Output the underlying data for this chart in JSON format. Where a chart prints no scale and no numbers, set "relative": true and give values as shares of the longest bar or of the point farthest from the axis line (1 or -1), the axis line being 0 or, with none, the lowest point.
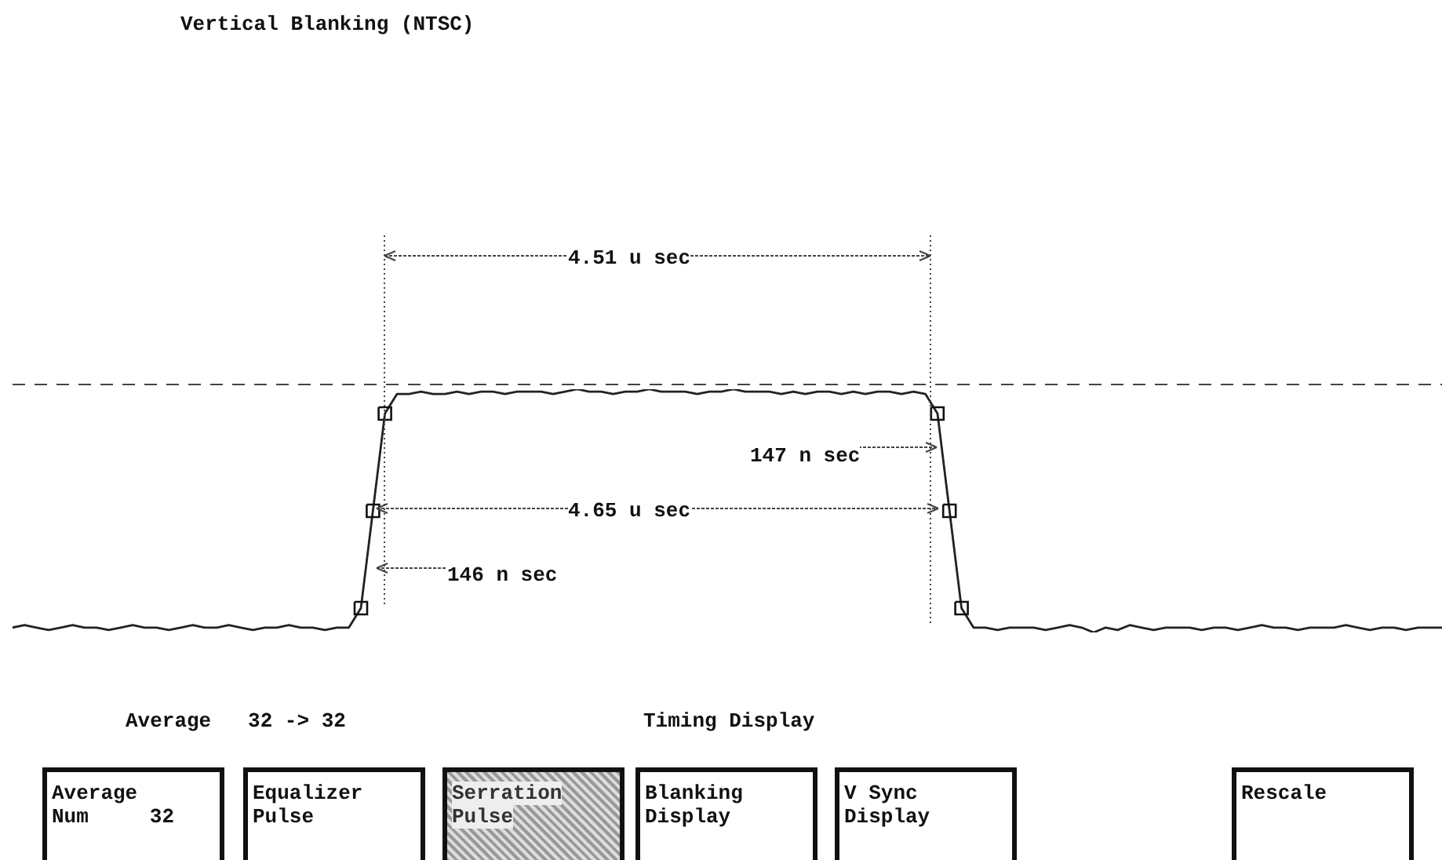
{
  "chart_data": {
    "type": "line",
    "relative": true,
    "title": "Vertical Blanking (NTSC)",
    "categories": [
      null,
      null,
      null,
      null,
      null,
      null,
      null,
      null,
      null,
      null,
      null,
      null,
      null,
      null,
      null,
      null,
      null,
      null,
      null,
      null,
      null,
      null,
      null,
      null,
      null,
      null,
      null,
      null,
      null,
      null,
      null,
      null,
      null,
      null,
      null,
      null,
      null,
      null,
      null,
      null,
      null,
      null,
      null,
      null,
      null,
      null,
      null,
      null,
      null,
      null,
      null,
      null,
      null,
      null,
      null,
      null,
      null,
      null,
      null,
      null,
      null,
      null,
      null,
      null,
      null,
      null,
      null,
      null,
      null,
      null,
      null,
      null,
      null,
      null,
      null,
      null,
      null,
      null,
      null,
      null,
      null,
      null,
      null,
      null,
      null,
      null,
      null,
      null,
      null,
      null,
      null,
      null,
      null,
      null,
      null,
      null,
      null,
      null,
      null,
      null,
      null,
      null,
      null,
      null,
      null,
      null,
      null,
      null,
      null,
      null,
      null,
      null,
      null,
      null,
      null,
      null,
      null,
      null,
      null,
      null
    ],
    "series": [
      {
        "color": "#222222",
        "values": [
          0.02,
          0.03,
          0.02,
          0.01,
          0.02,
          0.03,
          0.02,
          0.02,
          0.01,
          0.02,
          0.03,
          0.02,
          0.02,
          0.01,
          0.02,
          0.03,
          0.02,
          0.02,
          0.03,
          0.02,
          0.01,
          0.02,
          0.02,
          0.03,
          0.02,
          0.02,
          0.01,
          0.02,
          0.02,
          0.1,
          0.5,
          0.9,
          0.98,
          0.98,
          0.99,
          0.98,
          0.98,
          0.99,
          0.98,
          0.99,
          0.99,
          0.98,
          0.99,
          0.99,
          0.99,
          0.98,
          0.99,
          1,
          0.99,
          0.99,
          0.98,
          0.99,
          0.99,
          1,
          0.99,
          0.99,
          0.99,
          0.98,
          0.99,
          0.99,
          1,
          0.99,
          0.99,
          0.99,
          0.98,
          0.99,
          0.98,
          0.99,
          0.99,
          0.98,
          0.99,
          0.98,
          0.99,
          0.99,
          0.98,
          0.99,
          0.98,
          0.9,
          0.5,
          0.1,
          0.02,
          0.02,
          0.01,
          0.02,
          0.02,
          0.02,
          0.01,
          0.02,
          0.03,
          0.02,
          0,
          0.02,
          0.01,
          0.03,
          0.02,
          0.01,
          0.02,
          0.02,
          0.02,
          0.01,
          0.02,
          0.02,
          0.01,
          0.02,
          0.03,
          0.02,
          0.02,
          0.01,
          0.02,
          0.02,
          0.02,
          0.03,
          0.02,
          0.01,
          0.02,
          0.02,
          0.01,
          0.02,
          0.02,
          0.02
        ]
      }
    ],
    "annotations": [
      "4.51 u sec",
      "147 n sec",
      "4.65 u sec",
      "146 n sec",
      "Average   32 -> 32",
      "Timing Display",
      "Average\nNum     32",
      "Equalizer\nPulse",
      "Serration\nPulse",
      "Blanking\nDisplay",
      "V Sync\nDisplay",
      "Rescale"
    ]
  }
}
